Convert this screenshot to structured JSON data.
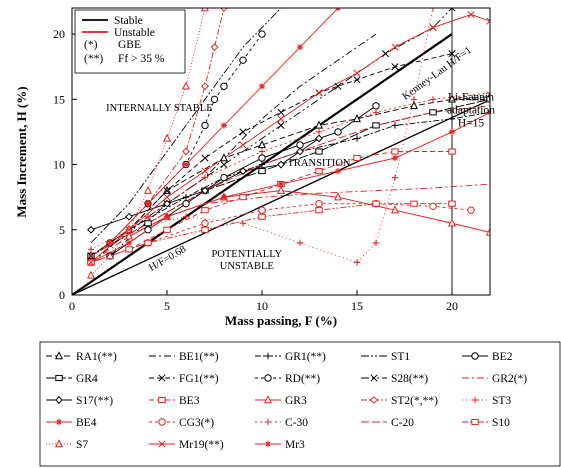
{
  "chart_data": {
    "type": "line",
    "xlabel": "Mass passing, F (%)",
    "ylabel": "Mass Increment, H (%)",
    "xlim": [
      0,
      22
    ],
    "ylim": [
      0,
      22
    ],
    "xticks": [
      0,
      5,
      10,
      15,
      20
    ],
    "yticks": [
      0,
      5,
      10,
      15,
      20
    ],
    "grid": false,
    "legend_top": [
      {
        "label": "Stable",
        "color": "#000000"
      },
      {
        "label": "Unstable",
        "color": "#e02020"
      }
    ],
    "legend_notes": [
      {
        "symbol": "(*)",
        "text": "GBE"
      },
      {
        "symbol": "(**)",
        "text": "Ff > 35 %"
      }
    ],
    "annotations": [
      {
        "text": "INTERNALLY STABLE",
        "x": 4.6,
        "y": 14.1
      },
      {
        "text": "TRANSITION",
        "x": 13.0,
        "y": 9.9
      },
      {
        "text": "POTENTIALLY",
        "x": 9.2,
        "y": 2.9
      },
      {
        "text": "UNSTABLE",
        "x": 9.2,
        "y": 2.0
      },
      {
        "text": "H/F=0.68",
        "x": 5.1,
        "y": 2.6
      },
      {
        "text": "Kenney-Lau H/F=1",
        "x": 19.3,
        "y": 16.8
      },
      {
        "text": "Li-Fannin",
        "x": 21.0,
        "y": 14.9
      },
      {
        "text": "adaptation",
        "x": 21.0,
        "y": 13.9
      },
      {
        "text": "H=15",
        "x": 21.0,
        "y": 12.9
      }
    ],
    "reference_lines": [
      {
        "name": "H/F=1",
        "x": [
          0,
          20
        ],
        "y": [
          0,
          20
        ]
      },
      {
        "name": "H/F=0.68",
        "x": [
          0,
          22
        ],
        "y": [
          0,
          14.96
        ]
      },
      {
        "name": "H=15",
        "x": [
          20,
          22
        ],
        "y": [
          15,
          15
        ]
      },
      {
        "name": "F=20",
        "x": [
          20,
          20
        ],
        "y": [
          0,
          22
        ]
      }
    ],
    "series": [
      {
        "name": "RA1(**)",
        "stable": true,
        "color": "#000000",
        "dash": "6,3",
        "marker": "triangle",
        "x": [
          1,
          3,
          5,
          8,
          10,
          13,
          15,
          18,
          20,
          22
        ],
        "y": [
          3,
          5,
          8,
          10.5,
          11.5,
          13,
          13.5,
          14.5,
          15,
          15.2
        ]
      },
      {
        "name": "BE1(**)",
        "stable": true,
        "color": "#000000",
        "dash": "7,3,2,3",
        "marker": "none",
        "x": [
          1,
          4,
          7,
          10,
          12,
          14,
          16
        ],
        "y": [
          2.5,
          6,
          9,
          13.5,
          16,
          18,
          20
        ]
      },
      {
        "name": "GR1(**)",
        "stable": true,
        "color": "#000000",
        "dash": "6,2,2,2",
        "marker": "plus",
        "x": [
          1,
          3,
          6,
          8,
          10,
          12,
          15,
          17,
          20,
          22
        ],
        "y": [
          3,
          5,
          7.5,
          9,
          10,
          11,
          12,
          13,
          13.5,
          14
        ]
      },
      {
        "name": "ST1",
        "stable": true,
        "color": "#000000",
        "dash": "8,2,2,2,2,2",
        "marker": "none",
        "x": [
          1,
          3,
          5,
          7,
          9,
          11
        ],
        "y": [
          4,
          7,
          11,
          15,
          19,
          22
        ]
      },
      {
        "name": "BE2",
        "stable": true,
        "color": "#000000",
        "dash": "none",
        "marker": "circle",
        "x": [
          2,
          4,
          6,
          8,
          10,
          12,
          14,
          16
        ],
        "y": [
          3,
          5,
          7,
          9,
          10.5,
          11.5,
          12.5,
          14.5
        ]
      },
      {
        "name": "GR4",
        "stable": true,
        "color": "#000000",
        "dash": "9,2",
        "marker": "rect",
        "x": [
          1,
          4,
          7,
          10,
          13,
          16,
          19,
          22
        ],
        "y": [
          3,
          5.5,
          8,
          9.5,
          11,
          13,
          14,
          15
        ]
      },
      {
        "name": "FG1(**)",
        "stable": true,
        "color": "#000000",
        "dash": "5,3",
        "marker": "x",
        "x": [
          1,
          3,
          5,
          7,
          9,
          11,
          13,
          15,
          17,
          20
        ],
        "y": [
          3,
          5,
          8,
          10.5,
          12.5,
          14,
          15.5,
          16.5,
          17.5,
          18.5
        ]
      },
      {
        "name": "RD(**)",
        "stable": true,
        "color": "#000000",
        "dash": "3,3",
        "marker": "circle",
        "x": [
          2,
          4,
          6,
          7,
          7.5,
          8,
          9,
          10
        ],
        "y": [
          4,
          7,
          10,
          13,
          15,
          16,
          18,
          20
        ]
      },
      {
        "name": "S28(**)",
        "stable": true,
        "color": "#000000",
        "dash": "8,3,2,3,2,3",
        "marker": "x",
        "x": [
          2,
          5,
          8,
          11,
          14,
          16.5,
          19,
          20
        ],
        "y": [
          3,
          7,
          10,
          13,
          16,
          18.5,
          20.5,
          22
        ]
      },
      {
        "name": "GR2(*)",
        "stable": false,
        "color": "#e02020",
        "dash": "7,3,2,3",
        "marker": "none",
        "x": [
          1,
          3,
          5,
          7,
          10,
          13,
          16,
          19,
          22
        ],
        "y": [
          2.5,
          4.5,
          6,
          7,
          7.5,
          7.8,
          8,
          8.2,
          8.5
        ]
      },
      {
        "name": "S17(**)",
        "stable": true,
        "color": "#000000",
        "dash": "none",
        "marker": "diamond",
        "x": [
          1,
          3,
          5,
          7,
          9,
          11,
          12,
          13
        ],
        "y": [
          5,
          6,
          7,
          8,
          9.5,
          10,
          11,
          12
        ]
      },
      {
        "name": "BE3",
        "stable": false,
        "color": "#e02020",
        "dash": "5,3",
        "marker": "rect",
        "x": [
          1,
          3,
          5,
          7,
          9,
          11,
          13,
          15,
          17,
          20
        ],
        "y": [
          2.5,
          3.5,
          5,
          6.5,
          7.5,
          8.5,
          9.5,
          10.5,
          11,
          11
        ]
      },
      {
        "name": "GR3",
        "stable": false,
        "color": "#e02020",
        "dash": "none",
        "marker": "triangle",
        "x": [
          3,
          5,
          8,
          11,
          14,
          17,
          20,
          22
        ],
        "y": [
          4.5,
          6,
          7.5,
          8,
          7.5,
          6.5,
          5.5,
          4.8
        ]
      },
      {
        "name": "ST2(*,**)",
        "stable": false,
        "color": "#e02020",
        "dash": "6,2,2,2",
        "marker": "diamond",
        "x": [
          2,
          4,
          6,
          7,
          7.5,
          8
        ],
        "y": [
          4,
          7,
          11,
          16,
          19,
          22
        ]
      },
      {
        "name": "ST3",
        "stable": false,
        "color": "#e02020",
        "dash": "1,3",
        "marker": "plus",
        "x": [
          1,
          3,
          6,
          9,
          12,
          15,
          16,
          17,
          18,
          19
        ],
        "y": [
          3.5,
          5,
          6,
          5.5,
          4,
          2.5,
          4,
          9,
          15,
          22
        ]
      },
      {
        "name": "BE4",
        "stable": false,
        "color": "#e02020",
        "dash": "none",
        "marker": "star",
        "x": [
          1,
          3,
          5,
          8,
          11,
          14,
          17,
          20,
          22
        ],
        "y": [
          2.5,
          4,
          6,
          7.5,
          8.5,
          9.5,
          10.5,
          12.5,
          14
        ]
      },
      {
        "name": "CG3(*)",
        "stable": false,
        "color": "#e02020",
        "dash": "3,3",
        "marker": "circle",
        "x": [
          1,
          4,
          7,
          10,
          13,
          16,
          19,
          21
        ],
        "y": [
          2.5,
          4,
          5.5,
          6.5,
          7,
          7,
          6.8,
          6.5
        ]
      },
      {
        "name": "C-30",
        "stable": false,
        "color": "#e02020",
        "dash": "2,3",
        "marker": "plus",
        "x": [
          1,
          4,
          7,
          10,
          13,
          16,
          19,
          22
        ],
        "y": [
          3,
          6,
          9,
          11,
          12.5,
          14,
          15,
          15.5
        ]
      },
      {
        "name": "C-20",
        "stable": false,
        "color": "#e02020",
        "dash": "8,3",
        "marker": "none",
        "x": [
          1,
          4,
          7,
          10,
          13,
          16,
          19,
          22
        ],
        "y": [
          3,
          5.5,
          8,
          10,
          11.5,
          13,
          14,
          14.5
        ]
      },
      {
        "name": "S10",
        "stable": false,
        "color": "#e02020",
        "dash": "6,2,2,2,2,2",
        "marker": "rect",
        "x": [
          1,
          4,
          7,
          10,
          13,
          16,
          18,
          20
        ],
        "y": [
          2.5,
          4,
          5,
          6,
          6.5,
          7,
          7,
          7
        ]
      },
      {
        "name": "S7",
        "stable": false,
        "color": "#e02020",
        "dash": "1,2",
        "marker": "triangle",
        "x": [
          1,
          2,
          3,
          4,
          5,
          6,
          7
        ],
        "y": [
          1.5,
          3,
          5,
          8,
          12,
          16,
          22
        ]
      },
      {
        "name": "Mr19(**)",
        "stable": false,
        "color": "#e02020",
        "dash": "none",
        "marker": "x",
        "x": [
          1,
          3,
          5,
          7,
          9,
          11,
          13,
          15,
          17,
          19,
          21,
          22
        ],
        "y": [
          2.5,
          5,
          7.5,
          9.5,
          11.5,
          13.5,
          15.5,
          17,
          19,
          20.5,
          21.5,
          21
        ]
      },
      {
        "name": "Mr3",
        "stable": false,
        "color": "#e02020",
        "dash": "none",
        "marker": "star",
        "x": [
          2,
          4,
          6,
          8,
          10,
          12,
          14
        ],
        "y": [
          4,
          7,
          10,
          13,
          16,
          19,
          22
        ]
      }
    ]
  }
}
